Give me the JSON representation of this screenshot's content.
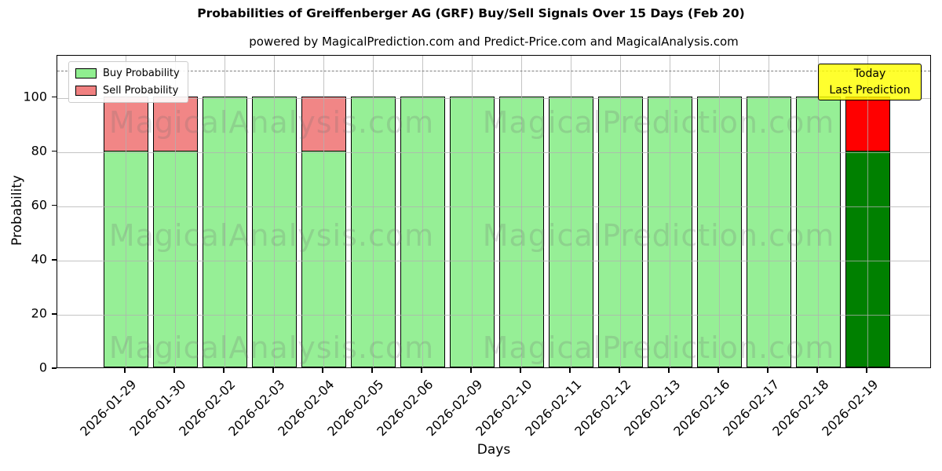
{
  "title": "Probabilities of Greiffenberger AG (GRF) Buy/Sell Signals Over 15 Days (Feb 20)",
  "subtitle": "powered by MagicalPrediction.com and Predict-Price.com and MagicalAnalysis.com",
  "axes": {
    "xlabel": "Days",
    "ylabel": "Probability",
    "yticks": [
      0,
      20,
      40,
      60,
      80,
      100
    ],
    "ymax": 115.5,
    "threshold_value": 110
  },
  "legend": {
    "items": [
      {
        "label": "Buy Probability",
        "color": "#90EE90"
      },
      {
        "label": "Sell Probability",
        "color": "#F08080"
      }
    ]
  },
  "annotation": {
    "line1": "Today",
    "line2": "Last Prediction",
    "bg_color": "#FFFF00"
  },
  "watermarks": {
    "left_text": "MagicalAnalysis.com",
    "right_text": "MagicalPrediction.com"
  },
  "chart_data": {
    "type": "bar",
    "stacked": true,
    "title": "Probabilities of Greiffenberger AG (GRF) Buy/Sell Signals Over 15 Days (Feb 20)",
    "xlabel": "Days",
    "ylabel": "Probability",
    "ylim": [
      0,
      115.5
    ],
    "grid": true,
    "legend_position": "upper left",
    "categories": [
      "2026-01-29",
      "2026-01-30",
      "2026-02-02",
      "2026-02-03",
      "2026-02-04",
      "2026-02-05",
      "2026-02-06",
      "2026-02-09",
      "2026-02-10",
      "2026-02-11",
      "2026-02-12",
      "2026-02-13",
      "2026-02-16",
      "2026-02-17",
      "2026-02-18",
      "2026-02-19"
    ],
    "series": [
      {
        "name": "Buy Probability",
        "values": [
          80,
          80,
          100,
          100,
          80,
          100,
          100,
          100,
          100,
          100,
          100,
          100,
          100,
          100,
          100,
          80
        ]
      },
      {
        "name": "Sell Probability",
        "values": [
          20,
          20,
          0,
          0,
          20,
          0,
          0,
          0,
          0,
          0,
          0,
          0,
          0,
          0,
          0,
          20
        ]
      }
    ],
    "colors": {
      "buy": "#90EE90",
      "sell": "#F08080",
      "today_buy": "#008000",
      "today_sell": "#FF0000",
      "bar_edge": "#000000",
      "grid": "#b0b0b0",
      "threshold_line": "#7f7f7f"
    },
    "today_index": 15,
    "threshold_value": 110
  }
}
